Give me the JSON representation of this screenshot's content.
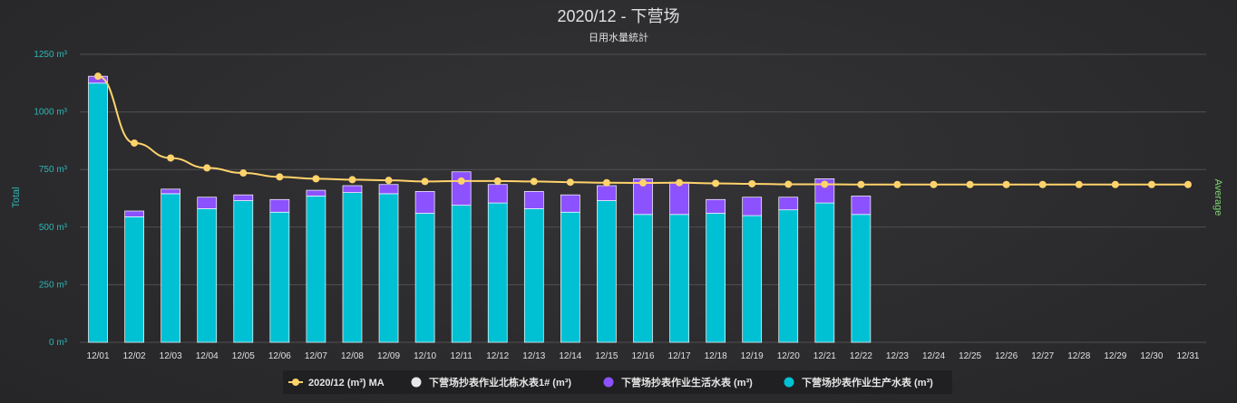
{
  "colors": {
    "production": "#00c0d4",
    "domestic": "#8c52ff",
    "north": "#e8e8ea",
    "ma": "#ffd36b",
    "grid": "#505053",
    "left_axis": "#2fb5b5",
    "right_axis": "#7bd66e"
  },
  "chart_data": {
    "type": "bar",
    "stacked": true,
    "title": "2020/12 - 下营场",
    "subtitle": "日用水量統計",
    "ylabel": "Total",
    "ylabel_right": "Average",
    "ylim": [
      0,
      1250
    ],
    "yticks": [
      0,
      250,
      500,
      750,
      1000,
      1250
    ],
    "ytick_labels": [
      "0 m³",
      "250 m³",
      "500 m³",
      "750 m³",
      "1000 m³",
      "1250 m³"
    ],
    "grid": true,
    "legend_position": "bottom",
    "categories": [
      "12/01",
      "12/02",
      "12/03",
      "12/04",
      "12/05",
      "12/06",
      "12/07",
      "12/08",
      "12/09",
      "12/10",
      "12/11",
      "12/12",
      "12/13",
      "12/14",
      "12/15",
      "12/16",
      "12/17",
      "12/18",
      "12/19",
      "12/20",
      "12/21",
      "12/22",
      "12/23",
      "12/24",
      "12/25",
      "12/26",
      "12/27",
      "12/28",
      "12/29",
      "12/30",
      "12/31"
    ],
    "series": [
      {
        "name": "下营场抄表作业生产水表 (m³)",
        "kind": "bar",
        "color_key": "production",
        "values": [
          1125,
          545,
          645,
          580,
          615,
          565,
          635,
          650,
          645,
          560,
          595,
          605,
          580,
          565,
          615,
          555,
          555,
          560,
          550,
          575,
          605,
          555,
          null,
          null,
          null,
          null,
          null,
          null,
          null,
          null,
          null
        ]
      },
      {
        "name": "下营场抄表作业生活水表 (m³)",
        "kind": "bar",
        "color_key": "domestic",
        "values": [
          30,
          25,
          20,
          50,
          25,
          55,
          25,
          30,
          40,
          95,
          145,
          80,
          75,
          75,
          65,
          155,
          140,
          60,
          80,
          55,
          105,
          80,
          null,
          null,
          null,
          null,
          null,
          null,
          null,
          null,
          null
        ]
      },
      {
        "name": "下营场抄表作业北栋水表1# (m³)",
        "kind": "bar",
        "color_key": "north",
        "values": [
          0,
          0,
          0,
          0,
          0,
          0,
          0,
          0,
          0,
          0,
          0,
          0,
          0,
          0,
          0,
          0,
          0,
          0,
          0,
          0,
          0,
          0,
          null,
          null,
          null,
          null,
          null,
          null,
          null,
          null,
          null
        ]
      },
      {
        "name": "2020/12 (m³) MA",
        "kind": "line",
        "color_key": "ma",
        "values": [
          1155,
          865,
          800,
          757,
          735,
          718,
          710,
          706,
          703,
          698,
          700,
          700,
          698,
          695,
          693,
          692,
          693,
          690,
          688,
          686,
          686,
          685,
          685,
          685,
          685,
          685,
          685,
          685,
          685,
          685,
          685
        ]
      }
    ],
    "legend": [
      {
        "name": "2020/12 (m³) MA",
        "color_key": "ma",
        "symbol": "line"
      },
      {
        "name": "下营场抄表作业北栋水表1# (m³)",
        "color_key": "north",
        "symbol": "circle"
      },
      {
        "name": "下营场抄表作业生活水表 (m³)",
        "color_key": "domestic",
        "symbol": "circle"
      },
      {
        "name": "下营场抄表作业生产水表 (m³)",
        "color_key": "production",
        "symbol": "circle"
      }
    ]
  }
}
